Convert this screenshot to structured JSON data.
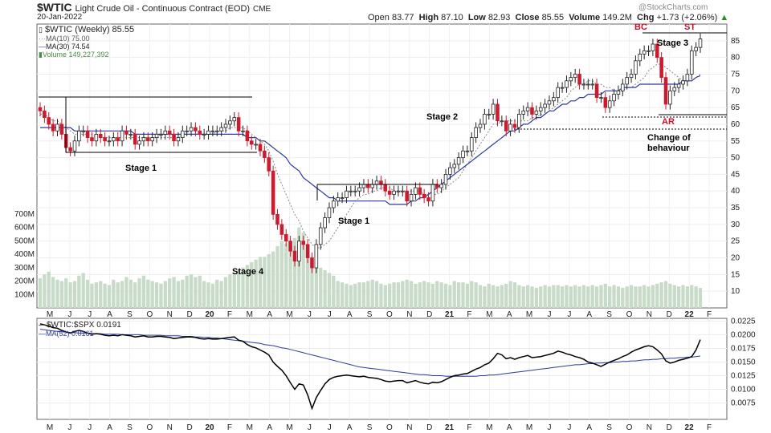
{
  "header": {
    "symbol": "$WTIC",
    "description": "Light Crude Oil - Continuous Contract (EOD)",
    "exchange": "CME",
    "date": "20-Jan-2022",
    "watermark": "@StockCharts.com",
    "ohlc": {
      "open_label": "Open",
      "open": "83.77",
      "high_label": "High",
      "high": "87.10",
      "low_label": "Low",
      "low": "82.93",
      "close_label": "Close",
      "close": "85.55",
      "volume_label": "Volume",
      "volume": "149.2M",
      "chg_label": "Chg",
      "chg": "+1.73 (+2.06%)"
    }
  },
  "legend": {
    "main": "$WTIC (Weekly) 85.55",
    "ma10": "MA(10) 75.00",
    "ma30": "MA(30) 74.54",
    "volume": "Volume 149,227,392",
    "ratio": "$WTIC:$SPX 0.0191",
    "ma52": "MA(52) 0.0161"
  },
  "annotations": {
    "stage1_left": "Stage 1",
    "stage4": "Stage 4",
    "stage1_mid": "Stage 1",
    "stage2": "Stage 2",
    "stage3": "Stage 3",
    "bc": "BC",
    "st": "ST",
    "ar": "AR",
    "change1": "Change of",
    "change2": "behaviour"
  },
  "colors": {
    "up": "#222222",
    "down": "#cc1b2e",
    "ma10": "#8a8a8a",
    "ma30": "#2b3a9c",
    "volume": "#c8dbc8",
    "ratio": "#000000",
    "ma52": "#2b3a9c",
    "annotation_red": "#c8102e"
  },
  "chart_data": [
    {
      "type": "candlestick",
      "title": "$WTIC (Weekly)",
      "ylim": [
        5,
        90
      ],
      "y_ticks": [
        10,
        15,
        20,
        25,
        30,
        35,
        40,
        45,
        50,
        55,
        60,
        65,
        70,
        75,
        80,
        85
      ],
      "volume_ticks": [
        "100M",
        "200M",
        "300M",
        "400M",
        "500M",
        "600M",
        "700M"
      ],
      "volume_tick_values": [
        100,
        200,
        300,
        400,
        500,
        600,
        700
      ],
      "x_tick_labels": [
        "M",
        "J",
        "J",
        "A",
        "S",
        "O",
        "N",
        "D",
        "20",
        "F",
        "M",
        "A",
        "M",
        "J",
        "J",
        "A",
        "S",
        "O",
        "N",
        "D",
        "21",
        "F",
        "M",
        "A",
        "M",
        "J",
        "J",
        "A",
        "S",
        "O",
        "N",
        "D",
        "22",
        "F"
      ],
      "close": [
        64,
        62,
        60,
        58,
        60,
        57,
        53,
        52,
        55,
        58,
        58,
        56,
        55,
        57,
        56,
        55,
        55,
        56,
        55,
        58,
        57,
        57,
        54,
        55,
        56,
        55,
        56,
        57,
        57,
        58,
        57,
        55,
        56,
        58,
        58,
        59,
        58,
        57,
        57,
        58,
        58,
        58,
        59,
        60,
        61,
        62,
        58,
        58,
        55,
        54,
        54,
        52,
        50,
        46,
        33,
        30,
        27,
        25,
        22,
        19,
        25,
        24,
        20,
        17,
        24,
        29,
        32,
        35,
        37,
        38,
        38,
        40,
        40,
        40,
        41,
        42,
        41,
        42,
        43,
        42,
        40,
        39,
        40,
        40,
        40,
        37,
        39,
        41,
        39,
        38,
        37,
        42,
        41,
        42,
        45,
        47,
        48,
        50,
        52,
        52,
        56,
        59,
        60,
        63,
        63,
        66,
        61,
        61,
        58,
        60,
        59,
        63,
        64,
        65,
        63,
        64,
        65,
        66,
        67,
        68,
        71,
        71,
        73,
        74,
        75,
        72,
        72,
        72,
        72,
        68,
        68,
        65,
        67,
        69,
        70,
        72,
        74,
        75,
        79,
        81,
        82,
        82,
        84,
        80,
        74,
        66,
        70,
        71,
        72,
        73,
        75,
        82,
        83,
        85.55
      ],
      "ma10": [
        63,
        63,
        62,
        61,
        61,
        60,
        59,
        58,
        57,
        57,
        57,
        57,
        57,
        56,
        56,
        56,
        56,
        56,
        56,
        56,
        56,
        56,
        56,
        56,
        56,
        56,
        56,
        56,
        56,
        56,
        56,
        56,
        56,
        57,
        57,
        57,
        57,
        57,
        57,
        57,
        57,
        58,
        58,
        58,
        59,
        59,
        59,
        59,
        58,
        57,
        56,
        55,
        54,
        52,
        49,
        45,
        42,
        39,
        36,
        33,
        31,
        28,
        26,
        24,
        23,
        23,
        24,
        25,
        27,
        29,
        31,
        33,
        35,
        37,
        38,
        39,
        39,
        40,
        40,
        41,
        41,
        41,
        40,
        40,
        40,
        40,
        40,
        40,
        40,
        39,
        39,
        39,
        39,
        40,
        41,
        42,
        43,
        44,
        46,
        48,
        50,
        52,
        54,
        56,
        58,
        60,
        60,
        61,
        61,
        61,
        61,
        61,
        61,
        61,
        62,
        62,
        63,
        63,
        64,
        65,
        66,
        67,
        68,
        70,
        71,
        72,
        72,
        73,
        73,
        72,
        72,
        71,
        71,
        70,
        70,
        70,
        71,
        71,
        72,
        73,
        74,
        76,
        77,
        78,
        78,
        77,
        76,
        75,
        74,
        73,
        73,
        73,
        74,
        75
      ],
      "ma30": [
        59,
        59,
        59,
        59,
        59,
        59,
        59,
        59,
        58,
        58,
        58,
        58,
        58,
        58,
        58,
        58,
        58,
        58,
        58,
        58,
        58,
        58,
        57,
        57,
        57,
        57,
        57,
        57,
        57,
        57,
        57,
        57,
        57,
        57,
        57,
        57,
        57,
        57,
        57,
        57,
        57,
        57,
        57,
        57,
        57,
        57,
        57,
        57,
        56,
        56,
        56,
        55,
        55,
        54,
        53,
        52,
        51,
        50,
        48,
        47,
        46,
        44,
        43,
        42,
        41,
        40,
        39,
        38,
        38,
        37,
        37,
        37,
        37,
        37,
        37,
        37,
        37,
        37,
        37,
        37,
        37,
        36,
        36,
        36,
        36,
        36,
        37,
        37,
        38,
        38,
        39,
        40,
        41,
        42,
        43,
        44,
        45,
        46,
        47,
        48,
        49,
        50,
        51,
        52,
        53,
        54,
        55,
        56,
        57,
        58,
        58,
        59,
        60,
        60,
        61,
        62,
        62,
        63,
        64,
        64,
        65,
        66,
        66,
        67,
        67,
        68,
        68,
        69,
        69,
        69,
        69,
        70,
        70,
        70,
        70,
        71,
        71,
        71,
        71,
        72,
        72,
        72,
        72,
        72,
        72,
        72,
        72,
        72,
        72,
        73,
        73,
        73,
        74,
        74.54
      ],
      "volume_M": [
        220,
        250,
        270,
        230,
        210,
        200,
        220,
        190,
        200,
        240,
        260,
        210,
        180,
        190,
        200,
        180,
        170,
        210,
        190,
        200,
        230,
        210,
        190,
        220,
        240,
        210,
        200,
        190,
        180,
        200,
        220,
        230,
        200,
        210,
        240,
        250,
        230,
        240,
        200,
        190,
        180,
        210,
        200,
        230,
        250,
        260,
        280,
        300,
        320,
        340,
        360,
        380,
        380,
        400,
        420,
        460,
        500,
        480,
        450,
        520,
        600,
        560,
        380,
        340,
        330,
        300,
        280,
        260,
        240,
        200,
        190,
        180,
        170,
        180,
        190,
        190,
        200,
        210,
        200,
        180,
        170,
        180,
        190,
        190,
        200,
        210,
        200,
        180,
        190,
        200,
        190,
        180,
        200,
        190,
        180,
        170,
        200,
        190,
        190,
        180,
        200,
        190,
        170,
        160,
        180,
        170,
        160,
        170,
        180,
        200,
        190,
        170,
        160,
        170,
        160,
        150,
        160,
        170,
        160,
        170,
        170,
        160,
        170,
        160,
        170,
        160,
        170,
        160,
        170,
        160,
        170,
        180,
        160,
        170,
        160,
        150,
        160,
        170,
        160,
        160,
        170,
        160,
        170,
        180,
        190,
        200,
        180,
        170,
        160,
        170,
        160,
        170,
        160,
        149
      ]
    },
    {
      "type": "line",
      "title": "$WTIC:$SPX",
      "ylim": [
        0.0045,
        0.023
      ],
      "y_ticks": [
        0.0075,
        0.01,
        0.0125,
        0.015,
        0.0175,
        0.02,
        0.0225
      ],
      "y_tick_labels": [
        "0.0075",
        "0.0100",
        "0.0125",
        "0.0150",
        "0.0175",
        "0.0200",
        "0.0225"
      ],
      "ratio": [
        0.022,
        0.0218,
        0.0216,
        0.0213,
        0.0212,
        0.0208,
        0.0205,
        0.0203,
        0.0206,
        0.0208,
        0.0206,
        0.0203,
        0.0201,
        0.0202,
        0.0201,
        0.0199,
        0.0198,
        0.0199,
        0.0198,
        0.02,
        0.0199,
        0.0198,
        0.0196,
        0.0197,
        0.0198,
        0.0196,
        0.0196,
        0.0197,
        0.0197,
        0.0196,
        0.0195,
        0.0193,
        0.0194,
        0.0195,
        0.0196,
        0.0196,
        0.0195,
        0.0193,
        0.0192,
        0.0193,
        0.0192,
        0.0192,
        0.0193,
        0.0194,
        0.0195,
        0.0196,
        0.019,
        0.0188,
        0.0182,
        0.0178,
        0.0176,
        0.0172,
        0.0168,
        0.0163,
        0.015,
        0.0142,
        0.0135,
        0.0125,
        0.0112,
        0.01,
        0.011,
        0.0108,
        0.009,
        0.0065,
        0.0085,
        0.0098,
        0.011,
        0.0118,
        0.0122,
        0.0124,
        0.0125,
        0.0126,
        0.0125,
        0.0124,
        0.0123,
        0.0124,
        0.0122,
        0.0121,
        0.012,
        0.0118,
        0.0115,
        0.0114,
        0.0115,
        0.0116,
        0.0116,
        0.0112,
        0.0114,
        0.0116,
        0.0113,
        0.0111,
        0.011,
        0.0113,
        0.0112,
        0.0114,
        0.0118,
        0.0122,
        0.0125,
        0.0126,
        0.0128,
        0.0129,
        0.0133,
        0.0137,
        0.014,
        0.0145,
        0.0148,
        0.0156,
        0.0166,
        0.0163,
        0.0156,
        0.0158,
        0.0155,
        0.0158,
        0.016,
        0.0162,
        0.0158,
        0.0159,
        0.016,
        0.0162,
        0.0164,
        0.0166,
        0.017,
        0.0168,
        0.0165,
        0.0163,
        0.016,
        0.0158,
        0.0155,
        0.015,
        0.0148,
        0.0145,
        0.0142,
        0.0146,
        0.015,
        0.0153,
        0.0156,
        0.016,
        0.0163,
        0.0168,
        0.0172,
        0.0175,
        0.0178,
        0.018,
        0.0178,
        0.0172,
        0.0165,
        0.0152,
        0.0148,
        0.015,
        0.0153,
        0.0155,
        0.0157,
        0.016,
        0.0172,
        0.0191
      ],
      "ma52": [
        0.021,
        0.0209,
        0.0208,
        0.0207,
        0.0206,
        0.0205,
        0.0205,
        0.0204,
        0.0204,
        0.0203,
        0.0203,
        0.0203,
        0.0202,
        0.0202,
        0.0202,
        0.0201,
        0.0201,
        0.0201,
        0.0201,
        0.02,
        0.02,
        0.02,
        0.02,
        0.02,
        0.0199,
        0.0199,
        0.0199,
        0.0199,
        0.0199,
        0.0198,
        0.0198,
        0.0198,
        0.0198,
        0.0197,
        0.0197,
        0.0197,
        0.0196,
        0.0196,
        0.0195,
        0.0195,
        0.0194,
        0.0194,
        0.0193,
        0.0192,
        0.0191,
        0.019,
        0.0189,
        0.0188,
        0.0187,
        0.0186,
        0.0185,
        0.0184,
        0.0182,
        0.0181,
        0.018,
        0.0178,
        0.0176,
        0.0175,
        0.0173,
        0.0171,
        0.0169,
        0.0167,
        0.0165,
        0.0163,
        0.0161,
        0.0159,
        0.0157,
        0.0155,
        0.0153,
        0.0151,
        0.0149,
        0.0147,
        0.0145,
        0.0143,
        0.0141,
        0.014,
        0.0139,
        0.0138,
        0.0137,
        0.0136,
        0.0135,
        0.0134,
        0.0133,
        0.0132,
        0.0131,
        0.013,
        0.0129,
        0.0128,
        0.0127,
        0.0127,
        0.0126,
        0.0125,
        0.0125,
        0.0125,
        0.0124,
        0.0124,
        0.0124,
        0.0124,
        0.0124,
        0.0124,
        0.0124,
        0.0124,
        0.0125,
        0.0125,
        0.0126,
        0.0126,
        0.0127,
        0.0128,
        0.0129,
        0.013,
        0.0131,
        0.0132,
        0.0133,
        0.0134,
        0.0135,
        0.0136,
        0.0137,
        0.0138,
        0.0139,
        0.014,
        0.0141,
        0.0142,
        0.0143,
        0.0144,
        0.0145,
        0.0145,
        0.0146,
        0.0147,
        0.0147,
        0.0148,
        0.0148,
        0.0149,
        0.0149,
        0.015,
        0.015,
        0.0151,
        0.0151,
        0.0152,
        0.0152,
        0.0153,
        0.0154,
        0.0154,
        0.0155,
        0.0155,
        0.0156,
        0.0156,
        0.0157,
        0.0157,
        0.0158,
        0.0158,
        0.0159,
        0.0159,
        0.016,
        0.0161
      ]
    }
  ]
}
